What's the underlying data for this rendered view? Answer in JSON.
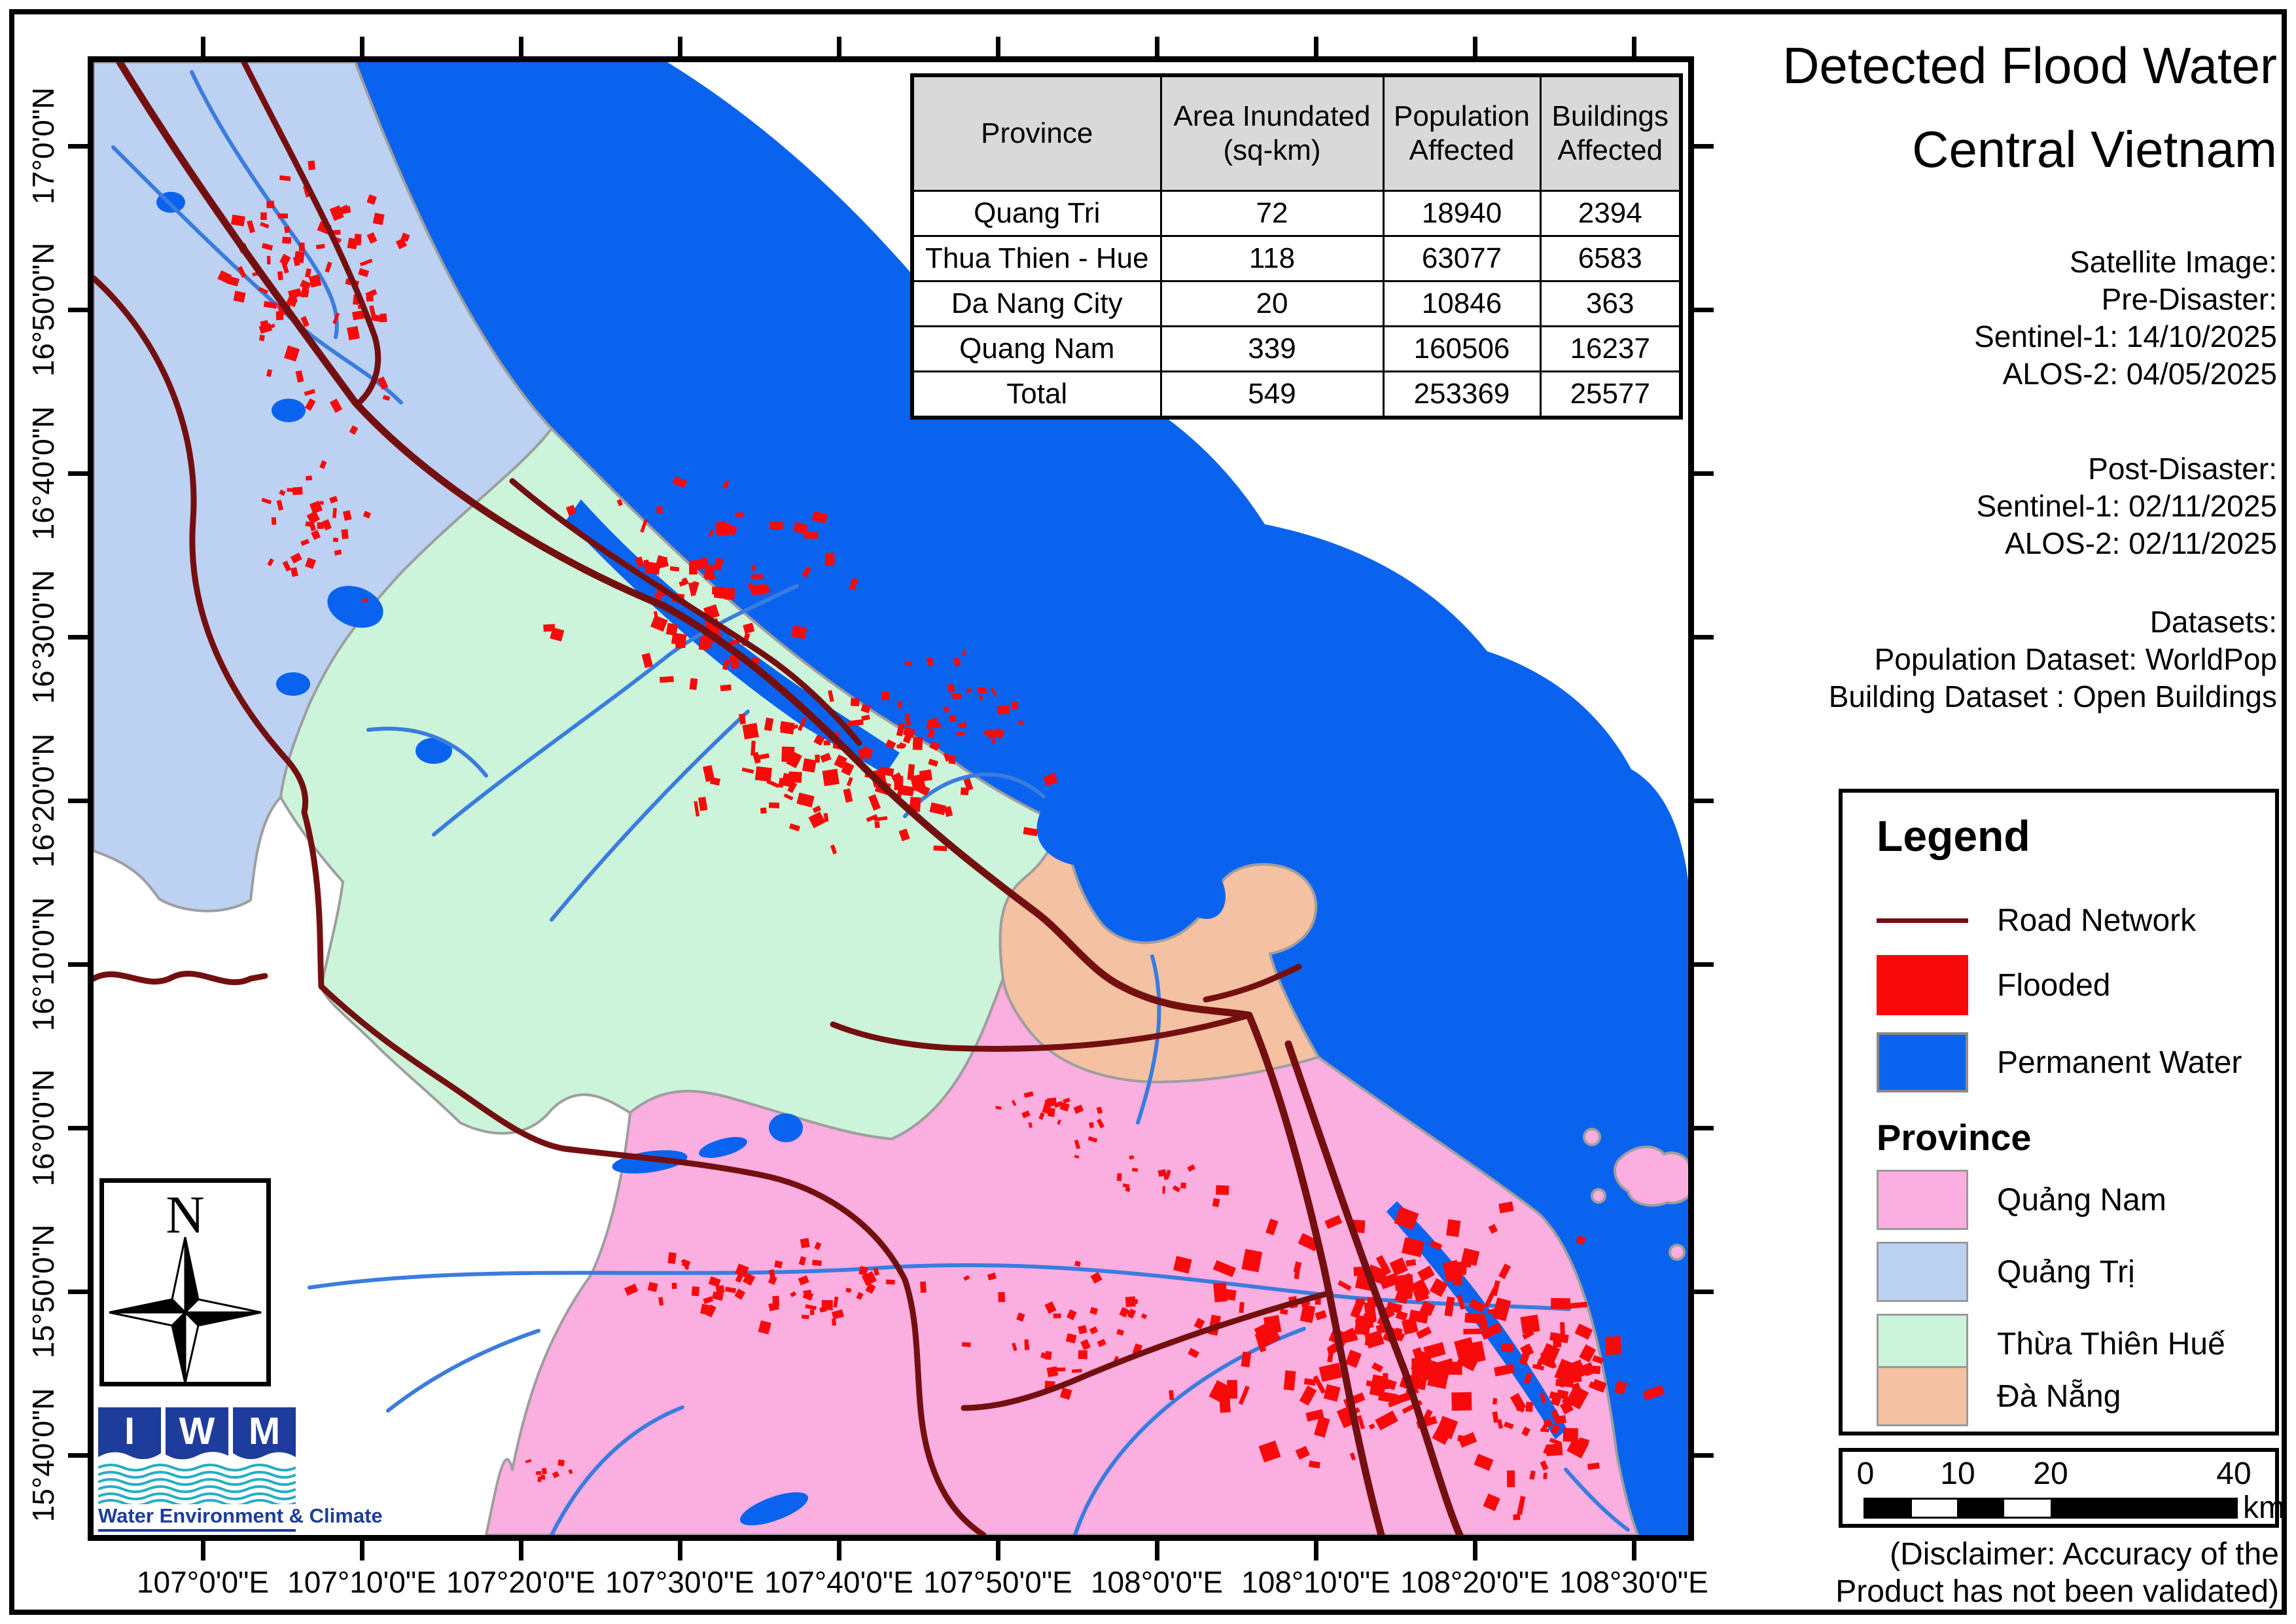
{
  "title": {
    "line1": "Detected Flood Water",
    "line2": "Central Vietnam"
  },
  "info": {
    "satellite_heading": "Satellite Image:",
    "pre_label": "Pre-Disaster:",
    "pre_sentinel": "Sentinel-1: 14/10/2025",
    "pre_alos": "ALOS-2: 04/05/2025",
    "post_label": "Post-Disaster:",
    "post_sentinel": "Sentinel-1: 02/11/2025",
    "post_alos": "ALOS-2: 02/11/2025",
    "datasets_heading": "Datasets:",
    "population_dataset": "Population Dataset: WorldPop",
    "building_dataset": "Building Dataset : Open Buildings"
  },
  "table": {
    "headers": [
      "Province",
      "Area Inundated\n(sq-km)",
      "Population\nAffected",
      "Buildings\nAffected"
    ],
    "rows": [
      {
        "province": "Quang Tri",
        "area": "72",
        "population": "18940",
        "buildings": "2394"
      },
      {
        "province": "Thua Thien - Hue",
        "area": "118",
        "population": "63077",
        "buildings": "6583"
      },
      {
        "province": "Da Nang City",
        "area": "20",
        "population": "10846",
        "buildings": "363"
      },
      {
        "province": "Quang Nam",
        "area": "339",
        "population": "160506",
        "buildings": "16237"
      },
      {
        "province": "Total",
        "area": "549",
        "population": "253369",
        "buildings": "25577"
      }
    ]
  },
  "legend": {
    "title": "Legend",
    "road": "Road Network",
    "flooded": "Flooded",
    "permanent_water": "Permanent Water",
    "province_heading": "Province",
    "provinces": [
      "Quảng Nam",
      "Quảng Trị",
      "Thừa Thiên Huế",
      "Đà Nẵng"
    ]
  },
  "axes": {
    "longitude": [
      "107°0'0\"E",
      "107°10'0\"E",
      "107°20'0\"E",
      "107°30'0\"E",
      "107°40'0\"E",
      "107°50'0\"E",
      "108°0'0\"E",
      "108°10'0\"E",
      "108°20'0\"E",
      "108°30'0\"E"
    ],
    "latitude": [
      "17°0'0\"N",
      "16°50'0\"N",
      "16°40'0\"N",
      "16°30'0\"N",
      "16°20'0\"N",
      "16°10'0\"N",
      "16°0'0\"N",
      "15°50'0\"N",
      "15°40'0\"N"
    ]
  },
  "scalebar": {
    "labels": [
      "0",
      "10",
      "20",
      "40"
    ],
    "unit": "km"
  },
  "compass": {
    "label": "N"
  },
  "logo": {
    "letters": [
      "I",
      "W",
      "M"
    ],
    "caption": "Water Environment & Climate"
  },
  "disclaimer": {
    "line1": "(Disclaimer: Accuracy of the",
    "line2": "Product has not been validated)"
  },
  "colors": {
    "sea": "#0A63EF",
    "flood": "#F80A0A",
    "road": "#740F10",
    "river": "#3B7CDE",
    "quang_tri": "#BDD1F2",
    "thua_thien_hue": "#CCF4DA",
    "da_nang": "#F4C1A2",
    "quang_nam": "#FBAEE0",
    "province_border": "#9E9E9E"
  }
}
